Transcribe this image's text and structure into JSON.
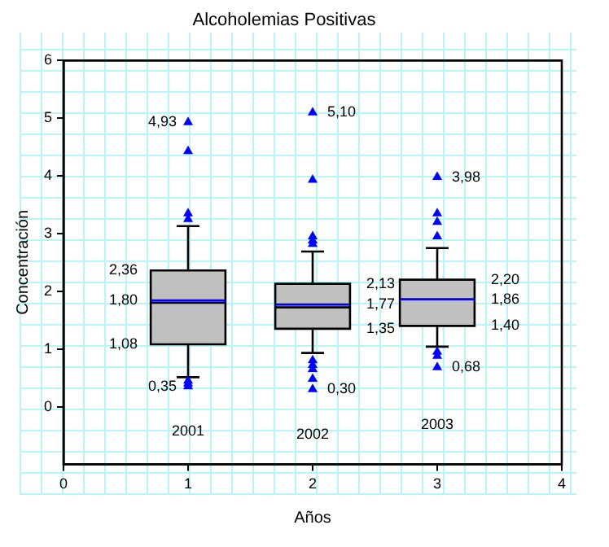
{
  "chart_data": {
    "type": "box",
    "title": "Alcoholemias Positivas",
    "xlabel": "Años",
    "ylabel": "Concentración",
    "x": [
      1,
      2,
      3
    ],
    "series": [
      {
        "type": "box",
        "color": "#c0c0c0",
        "boxes": [
          {
            "low": 0.51,
            "q1": 1.08,
            "median": 1.8,
            "q3": 2.36,
            "high": 3.13,
            "mean": 1.84
          },
          {
            "low": 0.93,
            "q1": 1.35,
            "median": 1.72,
            "q3": 2.13,
            "high": 2.69,
            "mean": 1.77
          },
          {
            "low": 1.04,
            "q1": 1.4,
            "median": 1.86,
            "q3": 2.2,
            "high": 2.75,
            "mean": 1.86
          }
        ]
      },
      {
        "type": "scatter",
        "color": "#0000ff",
        "x": [
          1,
          1,
          1,
          1,
          1,
          1,
          1,
          2,
          2,
          2,
          2,
          2,
          2,
          2,
          2,
          2,
          2,
          3,
          3,
          3,
          3,
          3,
          3,
          3
        ],
        "values": [
          4.93,
          4.43,
          3.35,
          3.25,
          0.45,
          0.4,
          0.35,
          5.1,
          3.93,
          2.95,
          2.88,
          2.82,
          0.8,
          0.72,
          0.65,
          0.48,
          0.3,
          3.98,
          3.35,
          3.2,
          2.95,
          0.95,
          0.88,
          0.68
        ]
      }
    ],
    "marker": "triangle",
    "xlim": [
      0,
      4
    ],
    "xticks": [
      0,
      1,
      2,
      3,
      4
    ],
    "ylim": [
      -1,
      6
    ],
    "yticks": [
      0,
      1,
      2,
      3,
      4,
      5,
      6
    ],
    "annotations": [
      "4,93",
      "2,36",
      "1,80",
      "1,08",
      "0,35",
      "5,10",
      "2,13",
      "1,77",
      "1,35",
      "0,30",
      "3,98",
      "2,20",
      "1,86",
      "1,40",
      "0,68",
      "2001",
      "2002",
      "2003"
    ]
  }
}
